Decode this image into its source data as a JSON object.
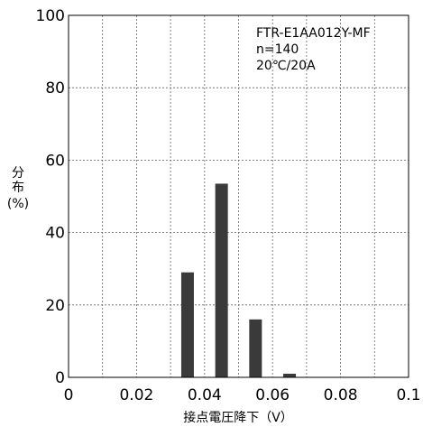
{
  "chart_data": {
    "type": "bar",
    "xlabel": "接点電圧降下（V）",
    "ylabel_lines": [
      "分",
      "布",
      "(%)"
    ],
    "x_ticks": [
      "0",
      "0.02",
      "0.04",
      "0.06",
      "0.08",
      "0.1"
    ],
    "y_ticks": [
      "0",
      "20",
      "40",
      "60",
      "80",
      "100"
    ],
    "xlim": [
      0,
      0.1
    ],
    "ylim": [
      0,
      100
    ],
    "grid": true,
    "annotations": [
      "FTR-E1AA012Y-MF",
      "n=140",
      "20℃/20A"
    ],
    "bars": [
      {
        "x": 0.035,
        "value": 29
      },
      {
        "x": 0.045,
        "value": 53.5
      },
      {
        "x": 0.055,
        "value": 16
      },
      {
        "x": 0.065,
        "value": 1
      }
    ],
    "bar_color": "#3a3a3a"
  }
}
